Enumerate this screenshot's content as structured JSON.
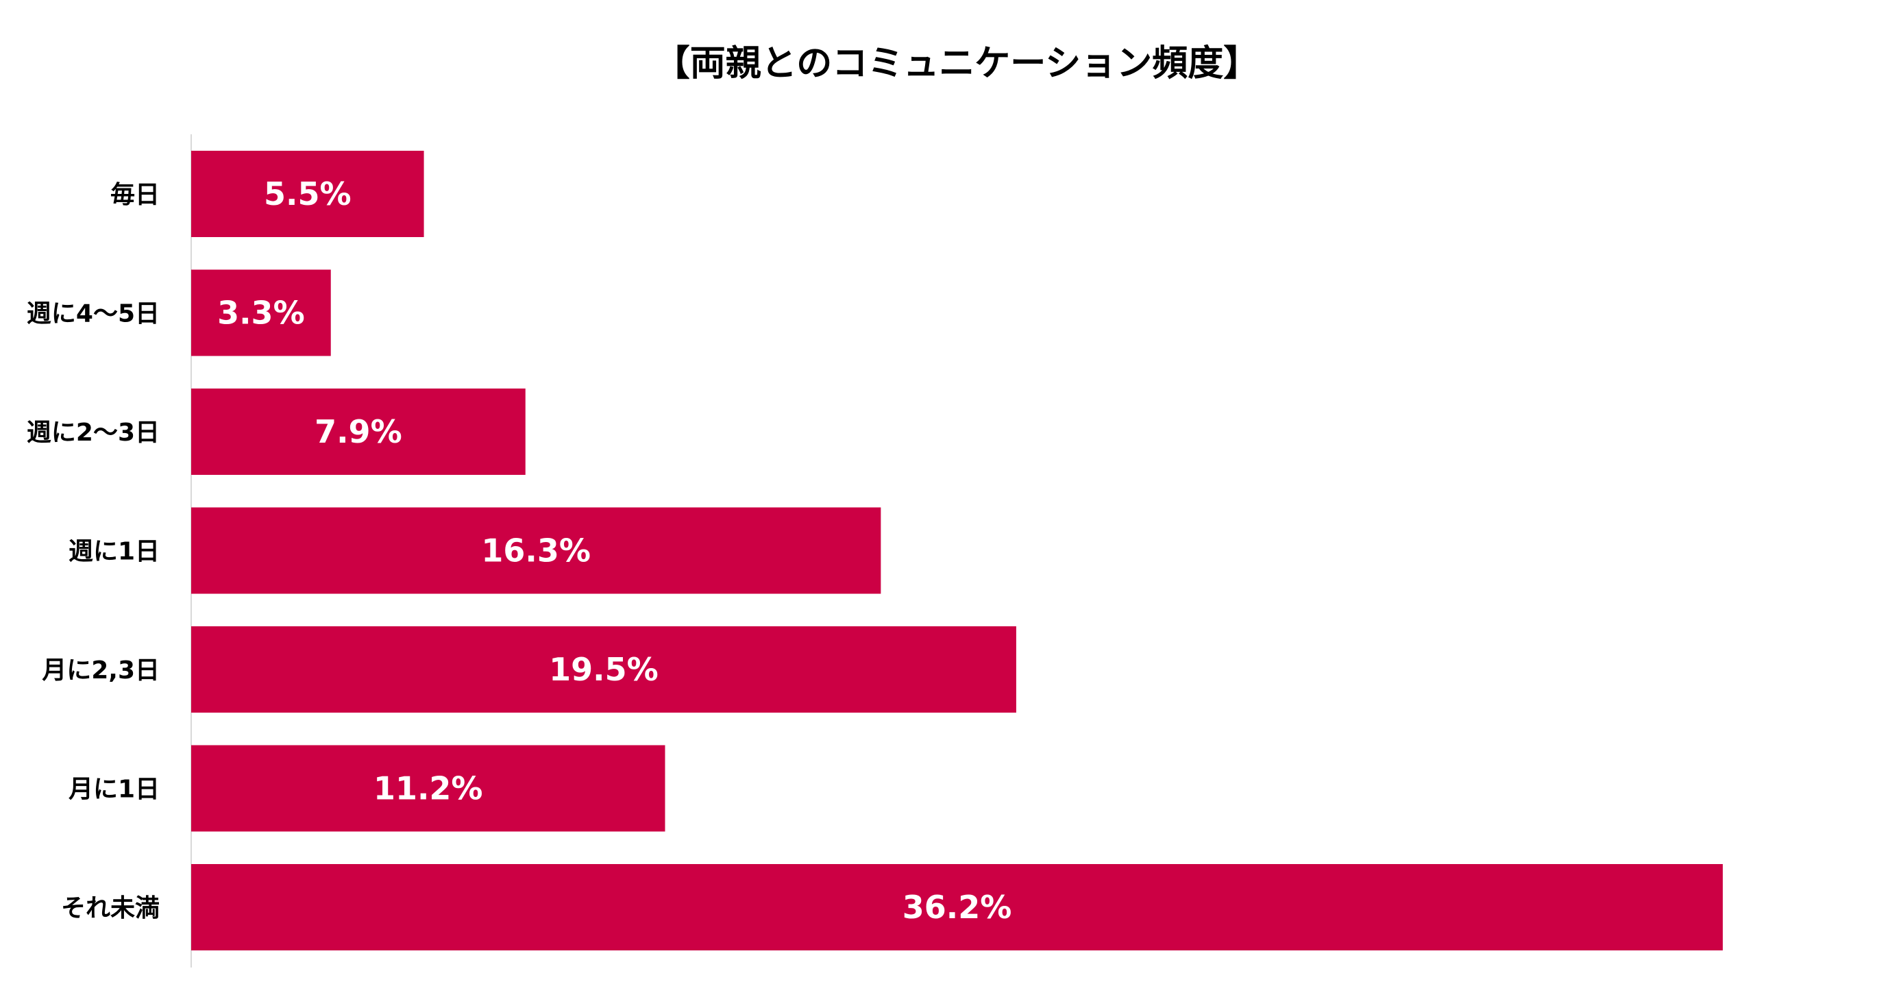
{
  "chart_data": {
    "type": "bar",
    "orientation": "horizontal",
    "title": "【両親とのコミュニケーション頻度】",
    "categories": [
      "毎日",
      "週に4～5日",
      "週に2～3日",
      "週に1日",
      "月に2,3日",
      "月に1日",
      "それ未満"
    ],
    "values": [
      5.5,
      3.3,
      7.9,
      16.3,
      19.5,
      11.2,
      36.2
    ],
    "value_labels": [
      "5.5%",
      "3.3%",
      "7.9%",
      "16.3%",
      "19.5%",
      "11.2%",
      "36.2%"
    ],
    "unit": "%",
    "xlim": [
      0,
      36.2
    ],
    "grid": false,
    "legend": "none",
    "bar_color": "#CC0044",
    "axis_color": "#D9D9D9",
    "label_color": "#FFFFFF"
  }
}
